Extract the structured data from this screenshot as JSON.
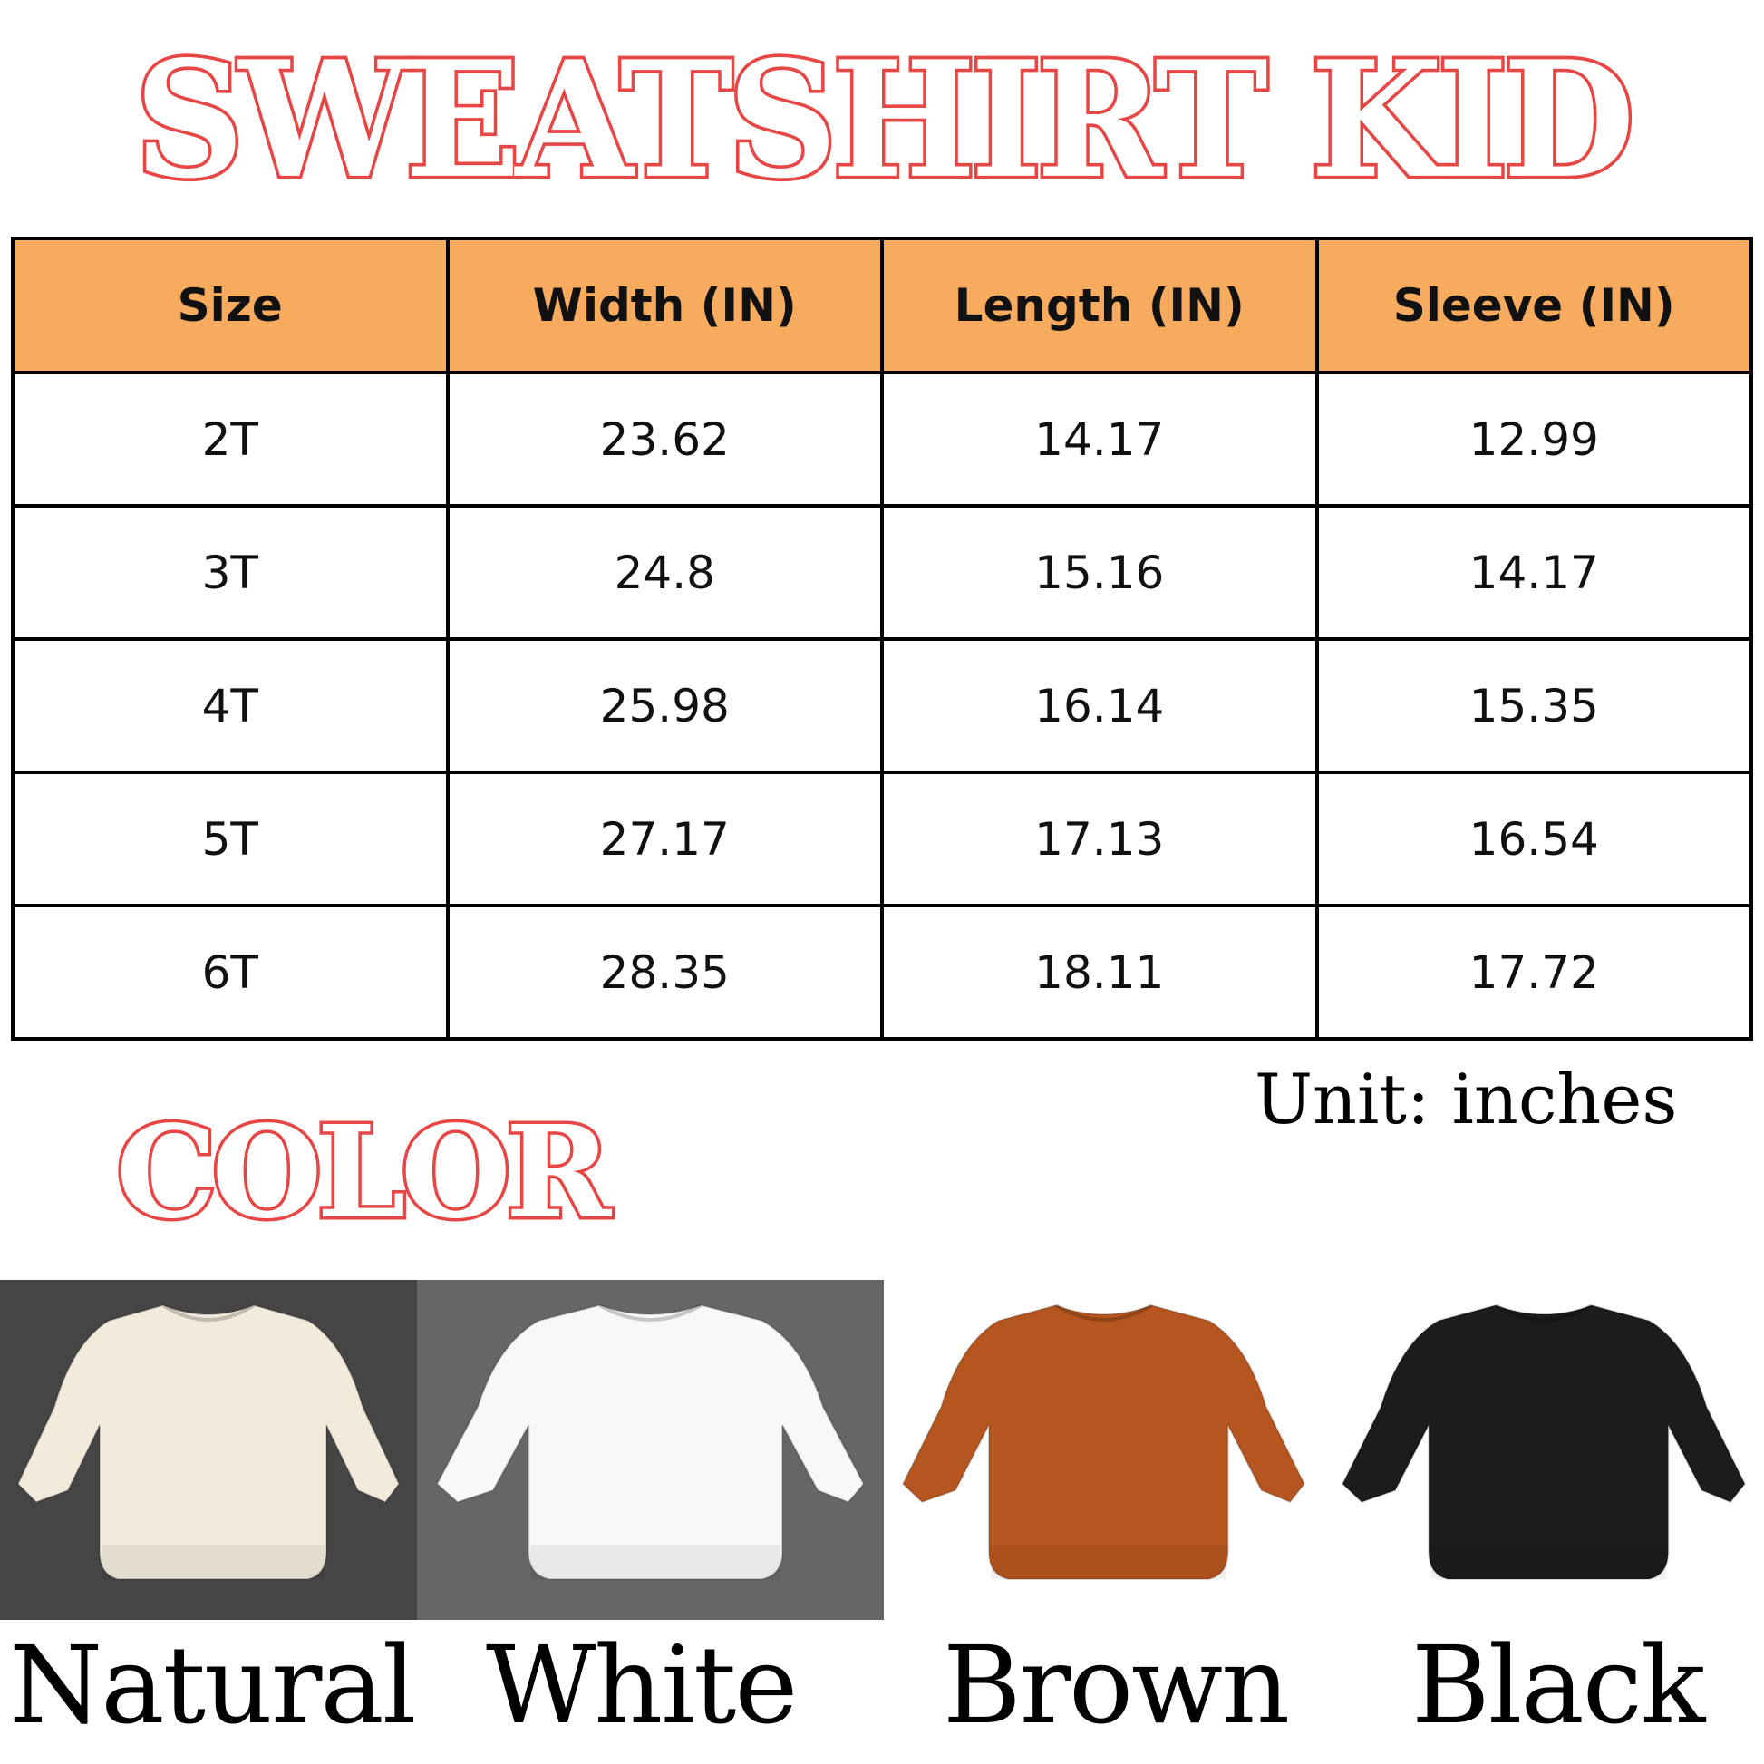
{
  "title": "SWEATSHIRT KID",
  "table": {
    "headers": [
      "Size",
      "Width (IN)",
      "Length (IN)",
      "Sleeve (IN)"
    ],
    "rows": [
      [
        "2T",
        "23.62",
        "14.17",
        "12.99"
      ],
      [
        "3T",
        "24.8",
        "15.16",
        "14.17"
      ],
      [
        "4T",
        "25.98",
        "16.14",
        "15.35"
      ],
      [
        "5T",
        "27.17",
        "17.13",
        "16.54"
      ],
      [
        "6T",
        "28.35",
        "18.11",
        "17.72"
      ]
    ]
  },
  "unit_note": "Unit: inches",
  "color_title": "COLOR",
  "colors": [
    {
      "name": "Natural",
      "shirt": "#f2ebdc",
      "background": "#454545"
    },
    {
      "name": "White",
      "shirt": "#f8f8f8",
      "background": "#666666"
    },
    {
      "name": "Brown",
      "shirt": "#b5551f",
      "background": "#ffffff"
    },
    {
      "name": "Black",
      "shirt": "#1c1c1c",
      "background": "#ffffff"
    }
  ],
  "accent": "#e84545",
  "header_color": "#f7ab5e"
}
